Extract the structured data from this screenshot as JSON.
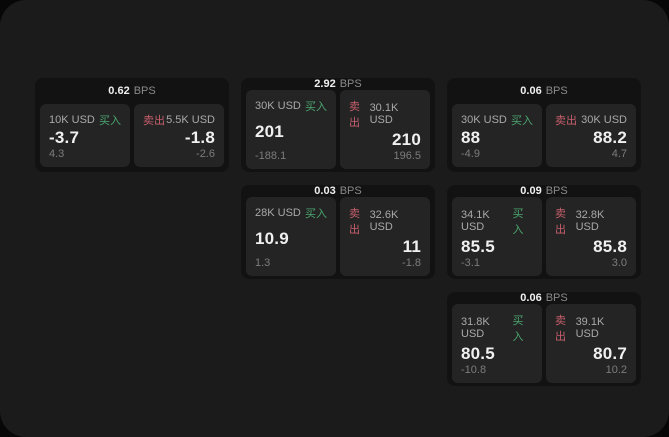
{
  "labels": {
    "buy": "买入",
    "sell": "卖出",
    "bps_unit": "BPS"
  },
  "colors": {
    "buy_green": "#4ba66f",
    "sell_red": "#c75f6c",
    "page_bg": "#1b1b1b",
    "card_bg": "#121212",
    "panel_bg": "#242424"
  },
  "cards": [
    {
      "bps": "0.62",
      "buy": {
        "amount": "10K USD",
        "value": "-3.7",
        "sub": "4.3"
      },
      "sell": {
        "amount": "5.5K USD",
        "value": "-1.8",
        "sub": "-2.6"
      }
    },
    {
      "bps": "2.92",
      "buy": {
        "amount": "30K USD",
        "value": "201",
        "sub": "-188.1"
      },
      "sell": {
        "amount": "30.1K USD",
        "value": "210",
        "sub": "196.5"
      }
    },
    {
      "bps": "0.06",
      "buy": {
        "amount": "30K USD",
        "value": "88",
        "sub": "-4.9"
      },
      "sell": {
        "amount": "30K USD",
        "value": "88.2",
        "sub": "4.7"
      }
    },
    {
      "bps": "0.03",
      "buy": {
        "amount": "28K USD",
        "value": "10.9",
        "sub": "1.3"
      },
      "sell": {
        "amount": "32.6K USD",
        "value": "11",
        "sub": "-1.8"
      }
    },
    {
      "bps": "0.09",
      "buy": {
        "amount": "34.1K USD",
        "value": "85.5",
        "sub": "-3.1"
      },
      "sell": {
        "amount": "32.8K USD",
        "value": "85.8",
        "sub": "3.0"
      }
    },
    {
      "bps": "0.06",
      "buy": {
        "amount": "31.8K USD",
        "value": "80.5",
        "sub": "-10.8"
      },
      "sell": {
        "amount": "39.1K USD",
        "value": "80.7",
        "sub": "10.2"
      }
    }
  ]
}
